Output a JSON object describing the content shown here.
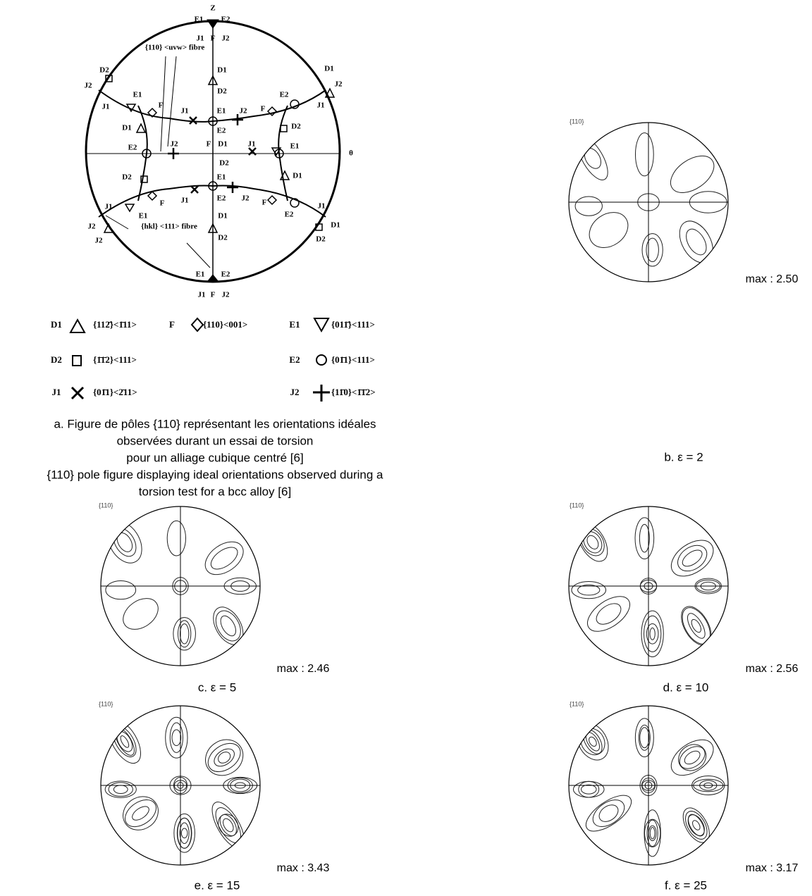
{
  "panel_a": {
    "axis_labels": [
      "Z",
      "θ"
    ],
    "diagram_labels": [
      "E1",
      "E2",
      "J1",
      "F",
      "J2",
      "D1",
      "D2",
      "D2",
      "J2",
      "E1",
      "J1",
      "D1",
      "J2",
      "E2",
      "J1",
      "F",
      "J1",
      "E1",
      "J2",
      "F",
      "E2",
      "D1",
      "D2",
      "E2",
      "J2",
      "F",
      "D1",
      "J1",
      "E1",
      "D2",
      "E1",
      "D2",
      "D1",
      "J1",
      "E2",
      "J2",
      "F",
      "J1",
      "E1",
      "F",
      "E2",
      "J1",
      "J2",
      "D1",
      "J2",
      "D2",
      "D1",
      "D2",
      "E1",
      "E2",
      "J1",
      "F",
      "J2"
    ],
    "fibre_labels": [
      "{110} <uvw> fibre",
      "{hkl} <111> fibre"
    ],
    "legend": [
      {
        "code": "D1",
        "orientation": "{112̄}<1̄11>"
      },
      {
        "code": "F",
        "orientation": "{110}<001>"
      },
      {
        "code": "E1",
        "orientation": "{011̄}<111>"
      },
      {
        "code": "D2",
        "orientation": "{1̄1̄2}<111>"
      },
      {
        "code": "E2",
        "orientation": "{01̄1}<111>"
      },
      {
        "code": "J1",
        "orientation": "{01̄1}<2̄11>"
      },
      {
        "code": "J2",
        "orientation": "{11̄0}<1̄1̄2>"
      }
    ],
    "caption": [
      "a. Figure de pôles {110} représentant les orientations idéales",
      "observées durant un essai de torsion",
      "pour un alliage cubique centré [6]",
      "{110} pole figure displaying ideal orientations observed during a",
      "torsion test for a bcc alloy [6]"
    ]
  },
  "panels": [
    {
      "pole": "{110}",
      "max": "max : 2.50",
      "caption": "b. ε = 2"
    },
    {
      "pole": "{110}",
      "max": "max : 2.46",
      "caption": "c. ε = 5"
    },
    {
      "pole": "{110}",
      "max": "max : 2.56",
      "caption": "d. ε = 10"
    },
    {
      "pole": "{110}",
      "max": "max : 3.43",
      "caption": "e. ε = 15"
    },
    {
      "pole": "{110}",
      "max": "max : 3.17",
      "caption": "f. ε = 25"
    }
  ]
}
